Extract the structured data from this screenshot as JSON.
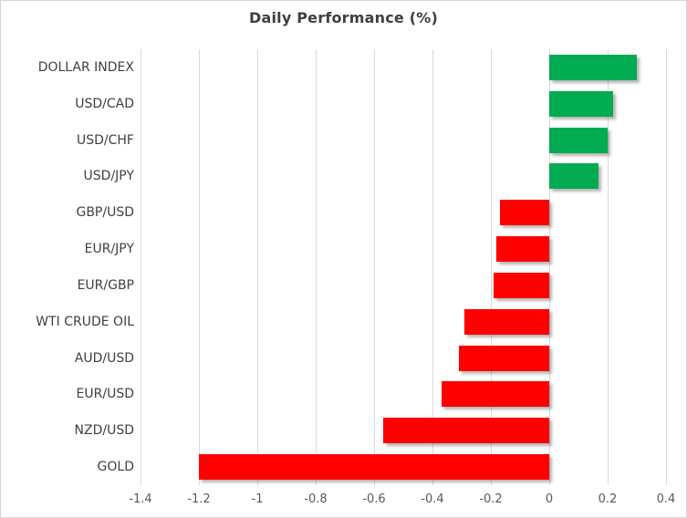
{
  "chart_data": {
    "type": "bar",
    "orientation": "horizontal",
    "title": "Daily Performance (%)",
    "categories": [
      "DOLLAR INDEX",
      "USD/CAD",
      "USD/CHF",
      "USD/JPY",
      "GBP/USD",
      "EUR/JPY",
      "EUR/GBP",
      "WTI CRUDE OIL",
      "AUD/USD",
      "EUR/USD",
      "NZD/USD",
      "GOLD"
    ],
    "values": [
      0.3,
      0.22,
      0.2,
      0.17,
      -0.17,
      -0.18,
      -0.19,
      -0.29,
      -0.31,
      -0.37,
      -0.57,
      -1.2
    ],
    "xlabel": "",
    "ylabel": "",
    "xlim": [
      -1.4,
      0.4
    ],
    "x_ticks": [
      -1.4,
      -1.2,
      -1,
      -0.8,
      -0.6,
      -0.4,
      -0.2,
      0,
      0.2,
      0.4
    ],
    "x_tick_labels": [
      "-1.4",
      "-1.2",
      "-1",
      "-0.8",
      "-0.6",
      "-0.4",
      "-0.2",
      "0",
      "0.2",
      "0.4"
    ],
    "grid": true,
    "legend": "none",
    "colors": {
      "positive": "#00ab51",
      "negative": "#ff0000",
      "gridline": "#d9d9d9",
      "title_text": "#3f3f3f",
      "category_text": "#404040",
      "tick_text": "#595959",
      "frame_border": "#d4d4d4",
      "background": "#ffffff"
    }
  }
}
